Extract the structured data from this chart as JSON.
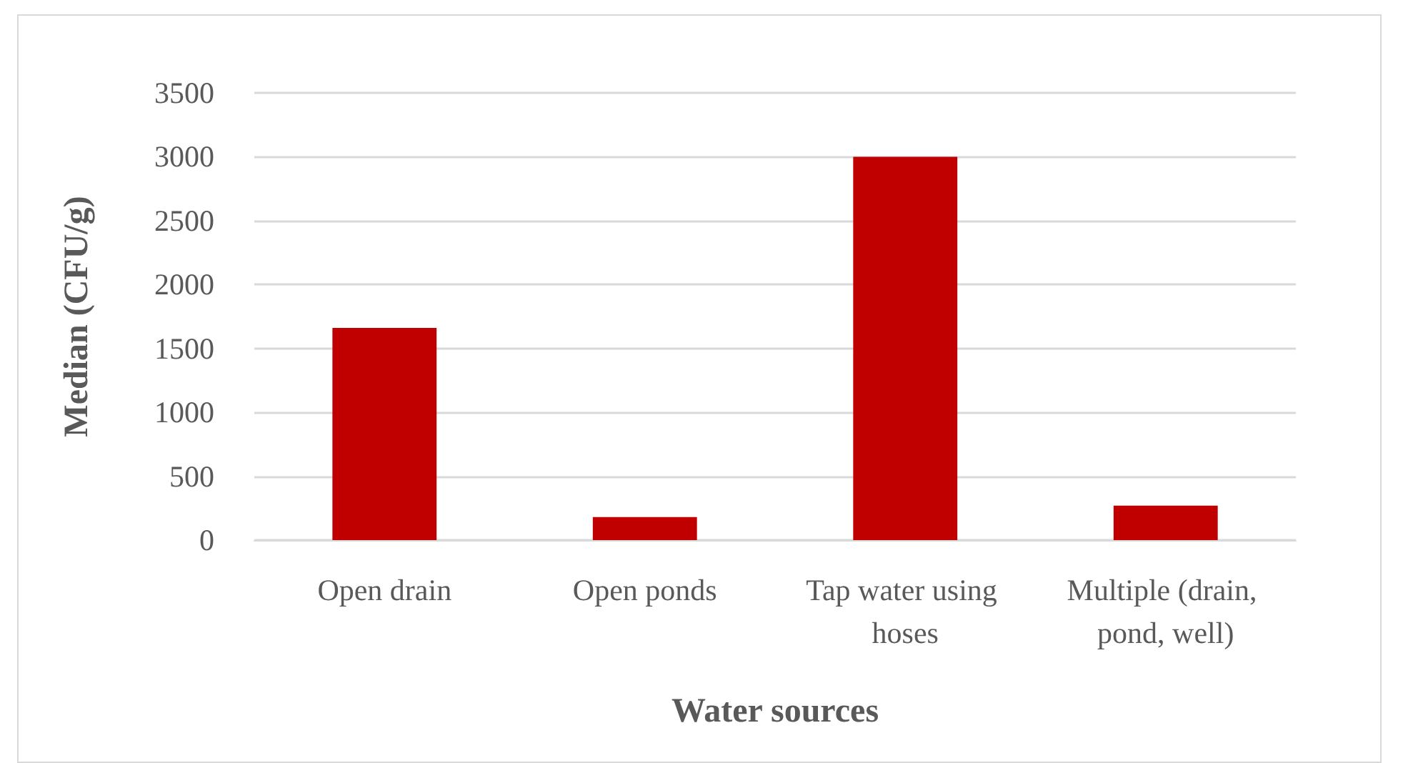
{
  "chart_data": {
    "type": "bar",
    "xlabel": "Water sources",
    "ylabel": "Median (CFU/g)",
    "categories": [
      "Open drain",
      "Open ponds",
      "Tap water using hoses",
      "Multiple (drain, pond, well)"
    ],
    "values": [
      1660,
      180,
      3000,
      270
    ],
    "color": "#c00000",
    "ylim": [
      0,
      3500
    ],
    "yticks": [
      0,
      500,
      1000,
      1500,
      2000,
      2500,
      3000,
      3500
    ],
    "grid": "y"
  }
}
